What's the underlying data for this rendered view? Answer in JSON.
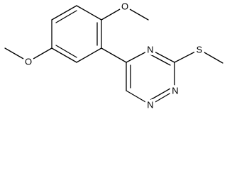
{
  "atoms": [
    {
      "label": "O"
    },
    {
      "label": "O"
    },
    {
      "label": "N"
    },
    {
      "label": "N"
    },
    {
      "label": "N"
    },
    {
      "label": "S"
    }
  ]
}
